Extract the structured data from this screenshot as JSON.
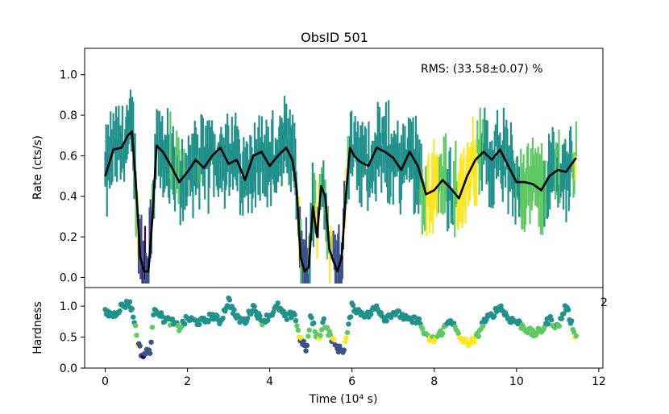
{
  "chart_data": {
    "type": "line",
    "title": "ObsID 501",
    "annotation": "RMS:  (33.58±0.07) %",
    "top_panel": {
      "ylabel": "Rate (cts/s)",
      "ylim": [
        -0.05,
        1.13
      ],
      "yticks": [
        "0.0",
        "0.2",
        "0.4",
        "0.6",
        "0.8",
        "1.0"
      ],
      "series": [
        {
          "name": "smoothed rate",
          "color": "#000000",
          "x": [
            0.0,
            0.2,
            0.4,
            0.55,
            0.65,
            0.75,
            0.85,
            0.95,
            1.05,
            1.15,
            1.25,
            1.4,
            1.6,
            1.8,
            2.0,
            2.2,
            2.4,
            2.6,
            2.8,
            3.0,
            3.2,
            3.4,
            3.6,
            3.8,
            4.0,
            4.2,
            4.4,
            4.55,
            4.65,
            4.75,
            4.85,
            4.95,
            5.05,
            5.15,
            5.25,
            5.35,
            5.45,
            5.55,
            5.65,
            5.75,
            5.85,
            5.95,
            6.05,
            6.2,
            6.4,
            6.6,
            6.8,
            7.0,
            7.2,
            7.4,
            7.6,
            7.8,
            8.0,
            8.2,
            8.4,
            8.6,
            8.8,
            9.0,
            9.2,
            9.4,
            9.6,
            9.8,
            10.0,
            10.2,
            10.4,
            10.6,
            10.8,
            11.0,
            11.2,
            11.45
          ],
          "y": [
            0.5,
            0.63,
            0.64,
            0.7,
            0.72,
            0.45,
            0.1,
            0.03,
            0.03,
            0.3,
            0.65,
            0.62,
            0.55,
            0.47,
            0.52,
            0.58,
            0.54,
            0.6,
            0.64,
            0.56,
            0.58,
            0.48,
            0.6,
            0.62,
            0.55,
            0.6,
            0.64,
            0.58,
            0.45,
            0.1,
            0.03,
            0.05,
            0.35,
            0.2,
            0.45,
            0.4,
            0.14,
            0.08,
            0.03,
            0.1,
            0.4,
            0.64,
            0.6,
            0.57,
            0.55,
            0.64,
            0.62,
            0.59,
            0.53,
            0.62,
            0.55,
            0.41,
            0.43,
            0.48,
            0.44,
            0.39,
            0.5,
            0.58,
            0.62,
            0.58,
            0.63,
            0.55,
            0.47,
            0.47,
            0.46,
            0.43,
            0.5,
            0.53,
            0.52,
            0.59
          ]
        }
      ]
    },
    "bottom_panel": {
      "ylabel": "Hardness",
      "ylim": [
        0.0,
        1.3
      ],
      "yticks": [
        "0.0",
        "0.5",
        "1.0"
      ],
      "series": [
        {
          "name": "hardness ratio",
          "x": [
            0.0,
            0.2,
            0.4,
            0.6,
            0.7,
            0.8,
            0.9,
            1.0,
            1.1,
            1.2,
            1.4,
            1.6,
            1.8,
            2.0,
            2.2,
            2.4,
            2.6,
            2.8,
            3.0,
            3.2,
            3.4,
            3.6,
            3.8,
            4.0,
            4.2,
            4.4,
            4.6,
            4.7,
            4.8,
            4.9,
            5.0,
            5.1,
            5.2,
            5.3,
            5.4,
            5.5,
            5.6,
            5.7,
            5.8,
            5.9,
            6.0,
            6.2,
            6.4,
            6.6,
            6.8,
            7.0,
            7.2,
            7.4,
            7.6,
            7.8,
            8.0,
            8.2,
            8.4,
            8.6,
            8.8,
            9.0,
            9.2,
            9.4,
            9.6,
            9.8,
            10.0,
            10.2,
            10.4,
            10.6,
            10.8,
            11.0,
            11.2,
            11.45
          ],
          "y": [
            0.9,
            0.85,
            1.0,
            1.05,
            0.8,
            0.4,
            0.2,
            0.25,
            0.3,
            1.0,
            0.8,
            0.75,
            0.65,
            0.8,
            0.75,
            0.75,
            0.85,
            0.75,
            1.1,
            0.8,
            0.75,
            1.0,
            0.75,
            0.85,
            1.0,
            0.8,
            0.9,
            0.55,
            0.4,
            0.3,
            0.85,
            0.6,
            0.45,
            0.8,
            0.6,
            0.5,
            0.35,
            0.3,
            0.3,
            0.6,
            1.0,
            0.9,
            0.85,
            1.0,
            0.8,
            0.9,
            0.85,
            0.75,
            0.8,
            0.5,
            0.45,
            0.6,
            0.8,
            0.5,
            0.4,
            0.45,
            0.75,
            0.85,
            1.0,
            0.8,
            0.75,
            0.65,
            0.55,
            0.6,
            0.8,
            0.65,
            1.0,
            0.5
          ]
        }
      ]
    },
    "xlabel": "Time (10⁴ s)",
    "xlim": [
      -0.5,
      12.1
    ],
    "xticks": [
      0,
      2,
      4,
      6,
      8,
      10,
      12
    ],
    "xtick_labels": [
      "0",
      "2",
      "4",
      "6",
      "8",
      "10",
      "12"
    ],
    "stray_text": "2",
    "colors": {
      "smooth_line": "#000000",
      "axes": "#000000",
      "viridis": [
        "#440154",
        "#3b528b",
        "#21918c",
        "#5ec962",
        "#fde725"
      ]
    }
  }
}
